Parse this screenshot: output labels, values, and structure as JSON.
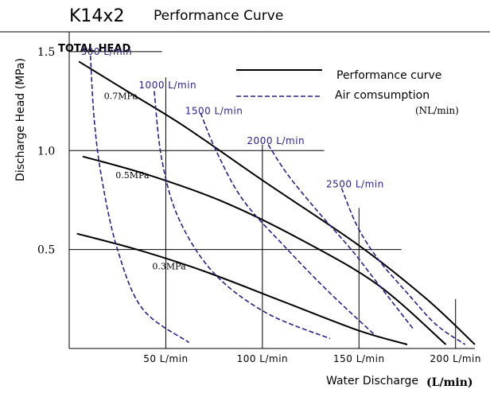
{
  "chart_data": {
    "type": "line",
    "title": "K14x2",
    "subtitle": "Performance Curve",
    "head_label": "TOTAL HEAD",
    "xlabel": "Water Discharge",
    "xunit": "(L/min)",
    "ylabel": "Discharge Head (MPa)",
    "xlim": [
      0,
      210
    ],
    "ylim": [
      0,
      1.6
    ],
    "y_ticks": [
      {
        "value": 1.5,
        "label": "1.5"
      },
      {
        "value": 1.0,
        "label": "1.0"
      },
      {
        "value": 0.5,
        "label": "0.5"
      }
    ],
    "x_ticks": [
      {
        "value": 50,
        "label": "50 L/min"
      },
      {
        "value": 100,
        "label": "100 L/min"
      },
      {
        "value": 150,
        "label": "150 L/min"
      },
      {
        "value": 200,
        "label": "200 L/min"
      }
    ],
    "legend": {
      "performance": "Performance curve",
      "air": "Air comsumption",
      "air_unit": "(NL/min)",
      "colors": {
        "performance": "#000000",
        "air": "#2a1f8c"
      }
    },
    "performance_curves": [
      {
        "name": "0.7MPa",
        "label_at": [
          18,
          1.26
        ],
        "points": [
          [
            5,
            1.45
          ],
          [
            30,
            1.3
          ],
          [
            60,
            1.12
          ],
          [
            100,
            0.85
          ],
          [
            150,
            0.52
          ],
          [
            185,
            0.25
          ],
          [
            210,
            0.02
          ]
        ]
      },
      {
        "name": "0.5MPa",
        "label_at": [
          24,
          0.86
        ],
        "points": [
          [
            7,
            0.97
          ],
          [
            40,
            0.88
          ],
          [
            80,
            0.74
          ],
          [
            120,
            0.55
          ],
          [
            160,
            0.32
          ],
          [
            195,
            0.02
          ]
        ]
      },
      {
        "name": "0.3MPa",
        "label_at": [
          43,
          0.4
        ],
        "points": [
          [
            4,
            0.58
          ],
          [
            35,
            0.5
          ],
          [
            70,
            0.39
          ],
          [
            110,
            0.24
          ],
          [
            150,
            0.09
          ],
          [
            175,
            0.02
          ]
        ]
      }
    ],
    "air_curves": [
      {
        "name": "500 L/min",
        "label_at": [
          6,
          1.5
        ],
        "points": [
          [
            11,
            1.48
          ],
          [
            13,
            1.15
          ],
          [
            17,
            0.85
          ],
          [
            25,
            0.5
          ],
          [
            38,
            0.2
          ],
          [
            62,
            0.03
          ]
        ]
      },
      {
        "name": "1000 L/min",
        "label_at": [
          36,
          1.33
        ],
        "points": [
          [
            44,
            1.3
          ],
          [
            48,
            0.95
          ],
          [
            57,
            0.65
          ],
          [
            75,
            0.38
          ],
          [
            102,
            0.18
          ],
          [
            135,
            0.05
          ]
        ]
      },
      {
        "name": "1500 L/min",
        "label_at": [
          60,
          1.2
        ],
        "points": [
          [
            68,
            1.19
          ],
          [
            76,
            1.0
          ],
          [
            90,
            0.75
          ],
          [
            113,
            0.5
          ],
          [
            135,
            0.28
          ],
          [
            158,
            0.07
          ]
        ]
      },
      {
        "name": "2000 L/min",
        "label_at": [
          92,
          1.05
        ],
        "points": [
          [
            103,
            1.03
          ],
          [
            113,
            0.88
          ],
          [
            128,
            0.7
          ],
          [
            146,
            0.5
          ],
          [
            158,
            0.35
          ],
          [
            178,
            0.1
          ]
        ]
      },
      {
        "name": "2500 L/min",
        "label_at": [
          133,
          0.83
        ],
        "points": [
          [
            141,
            0.81
          ],
          [
            149,
            0.62
          ],
          [
            160,
            0.45
          ],
          [
            175,
            0.28
          ],
          [
            190,
            0.12
          ],
          [
            205,
            0.02
          ]
        ]
      }
    ]
  }
}
